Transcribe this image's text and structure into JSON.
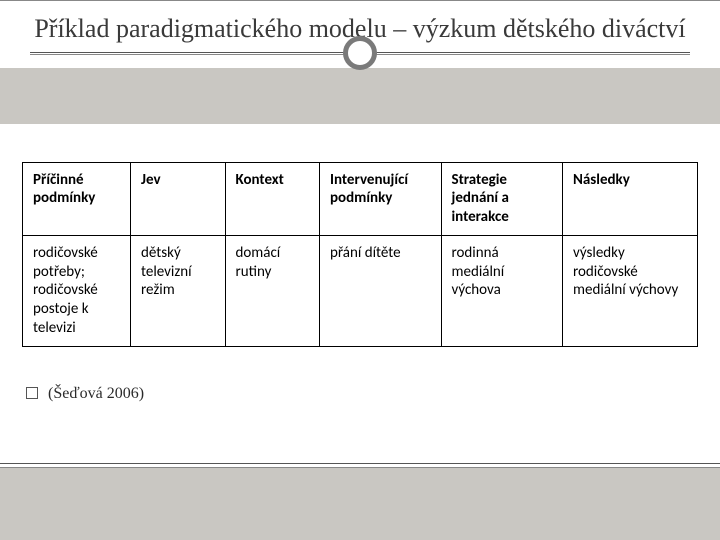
{
  "slide": {
    "title": "Příklad paradigmatického modelu – výzkum dětského diváctví",
    "citation": "(Šeďová 2006)",
    "colors": {
      "band": "#c9c7c2",
      "circle_border": "#7a7a7a",
      "title_text": "#3a3a3a",
      "rule": "#555555",
      "background": "#ffffff",
      "table_border": "#000000"
    },
    "table": {
      "type": "table",
      "columns": [
        {
          "label": "Příčinné podmínky",
          "width_pct": 16
        },
        {
          "label": "Jev",
          "width_pct": 14
        },
        {
          "label": "Kontext",
          "width_pct": 14
        },
        {
          "label": "Intervenující podmínky",
          "width_pct": 18
        },
        {
          "label": "Strategie jednání a interakce",
          "width_pct": 18
        },
        {
          "label": "Následky",
          "width_pct": 20
        }
      ],
      "rows": [
        [
          "rodičovské potřeby; rodičovské postoje k televizi",
          "dětský televizní režim",
          "domácí rutiny",
          "přání dítěte",
          "rodinná mediální výchova",
          "výsledky rodičovské mediální výchovy"
        ]
      ],
      "header_fontweight": "bold",
      "cell_fontsize": 15,
      "font_family": "Calibri"
    }
  }
}
